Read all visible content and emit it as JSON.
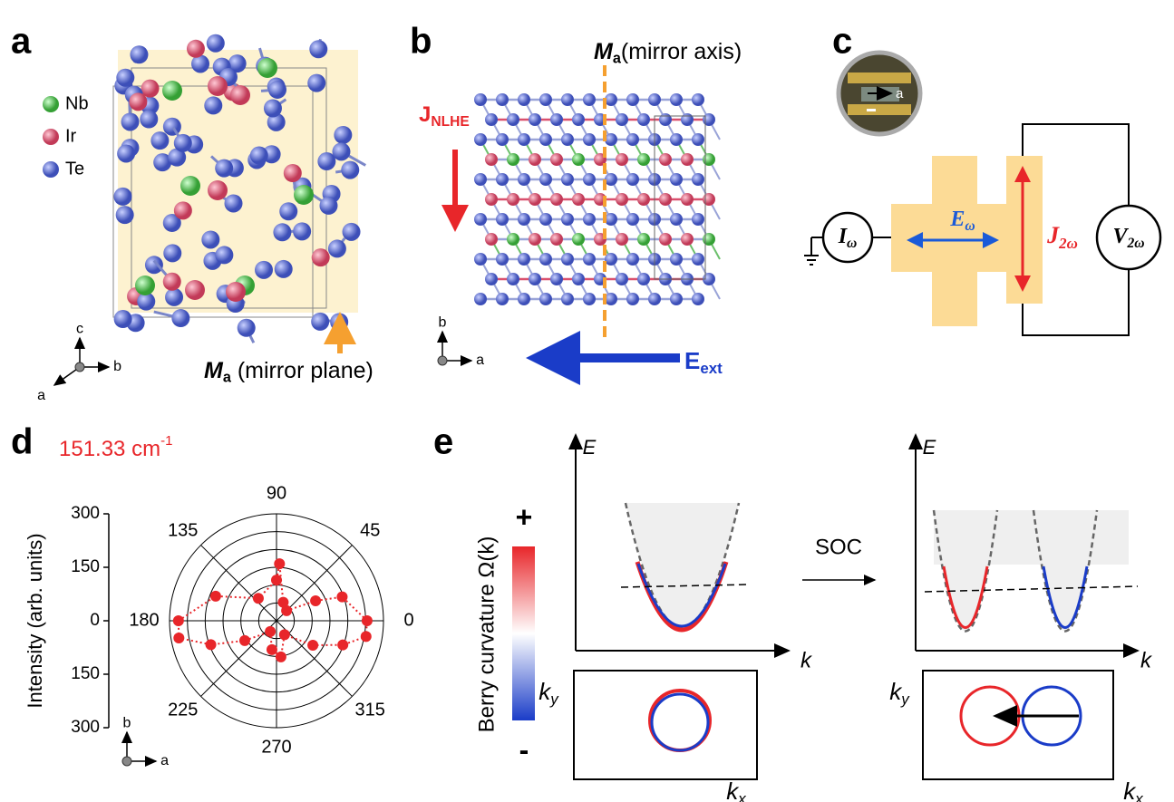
{
  "panels": {
    "a": {
      "label": "a",
      "legend": [
        {
          "name": "Nb",
          "color": "#4fc04f"
        },
        {
          "name": "Ir",
          "color": "#d9506e"
        },
        {
          "name": "Te",
          "color": "#5569cc"
        }
      ],
      "axes": [
        "c",
        "b",
        "a"
      ],
      "mirror": {
        "main": "M",
        "sub": "a",
        "text": " (mirror plane)"
      }
    },
    "b": {
      "label": "b",
      "mirror": {
        "main": "M",
        "sub": "a",
        "text": "(mirror axis)"
      },
      "current": {
        "main": "J",
        "sub": "NLHE"
      },
      "field": {
        "main": "E",
        "sub": "ext"
      },
      "axes": [
        "b",
        "a"
      ]
    },
    "c": {
      "label": "c",
      "inset_axis": "a",
      "source": {
        "main": "I",
        "sub": "ω"
      },
      "field": {
        "main": "E",
        "sub": "ω"
      },
      "current": {
        "main": "J",
        "sub": "2ω"
      },
      "voltage": {
        "main": "V",
        "sub": "2ω"
      }
    },
    "e": {
      "label": "e",
      "colorbar": {
        "label": "Berry curvature Ω(k)",
        "plus": "+",
        "minus": "-"
      },
      "energy": "E",
      "momentum": "k",
      "ky": {
        "main": "k",
        "sub": "y"
      },
      "kx": {
        "main": "k",
        "sub": "x"
      },
      "soc": "SOC"
    }
  },
  "chart_data": {
    "type": "polar",
    "panel_label": "d",
    "title": "151.33 cm",
    "title_sup": "-1",
    "ylabel": "Intensity (arb. units)",
    "ylim": [
      -300,
      300
    ],
    "yticks": [
      {
        "value": 300,
        "label": "300"
      },
      {
        "value": 150,
        "label": "150"
      },
      0,
      {
        "value": -150,
        "label": "150"
      },
      {
        "value": -300,
        "label": "300"
      }
    ],
    "rlim": [
      0,
      300
    ],
    "rticks": [
      50,
      100,
      150,
      200,
      250,
      300
    ],
    "thetaticks": [
      0,
      45,
      90,
      135,
      180,
      225,
      270,
      315
    ],
    "axes": [
      "b",
      "a"
    ],
    "series": [
      {
        "color": "#e8262a",
        "theta": [
          0,
          20,
          27,
          45,
          70,
          87,
          90,
          129,
          158,
          180,
          190,
          200,
          212,
          240,
          261,
          277,
          300,
          326,
          340,
          350
        ],
        "values": [
          254,
          196,
          123,
          40,
          55,
          160,
          114,
          81,
          184,
          275,
          278,
          196,
          105,
          35,
          82,
          102,
          45,
          123,
          198,
          255
        ]
      }
    ]
  }
}
